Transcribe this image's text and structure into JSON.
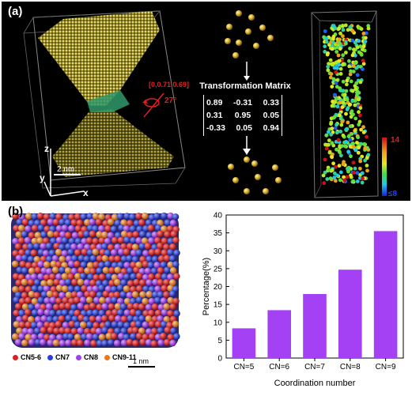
{
  "panel_a": {
    "label": "(a)",
    "axis_vector": "[0,0.71,0.69]",
    "angle": "27°",
    "scale_label": "2 nm",
    "axis_x": "x",
    "axis_y": "y",
    "axis_z": "z",
    "matrix_title": "Transformation Matrix",
    "matrix": [
      [
        "0.89",
        "-0.31",
        "0.33"
      ],
      [
        "0.31",
        "0.95",
        "0.05"
      ],
      [
        "-0.33",
        "0.05",
        "0.94"
      ]
    ],
    "colorbar_max": "14",
    "colorbar_min": "≤8"
  },
  "panel_b": {
    "label": "(b)",
    "scale_label": "1 nm",
    "legend": [
      {
        "label": "CN5-6",
        "color": "#e02020"
      },
      {
        "label": "CN7",
        "color": "#2840e0"
      },
      {
        "label": "CN8",
        "color": "#a040f0"
      },
      {
        "label": "CN9-11",
        "color": "#f07818"
      }
    ]
  },
  "chart_data": {
    "type": "bar",
    "categories": [
      "CN=5",
      "CN=6",
      "CN=7",
      "CN=8",
      "CN=9"
    ],
    "values": [
      8.3,
      13.4,
      17.9,
      24.7,
      35.5
    ],
    "xlabel": "Coordination number",
    "ylabel": "Percentage(%)",
    "ylim": [
      0,
      40
    ],
    "yticks": [
      "0",
      "5",
      "10",
      "15",
      "20",
      "25",
      "30",
      "35",
      "40"
    ],
    "bar_color": "#a541f5"
  }
}
